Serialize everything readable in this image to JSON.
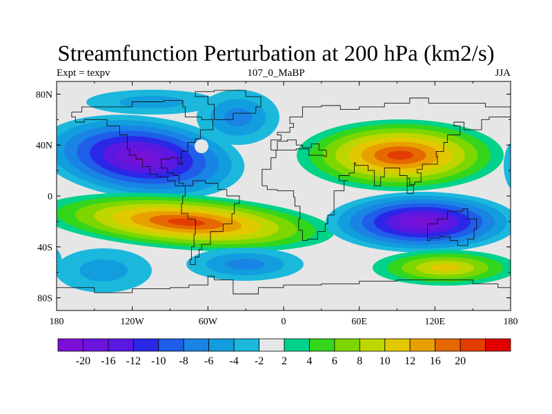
{
  "title": "Streamfunction Perturbation at 200 hPa (km2/s)",
  "left_string": "Expt = texpv",
  "center_string": "107_0_MaBP",
  "right_string": "JJA",
  "lat_ticks": [
    {
      "label": "80N",
      "lat": 80
    },
    {
      "label": "40N",
      "lat": 40
    },
    {
      "label": "0",
      "lat": 0
    },
    {
      "label": "40S",
      "lat": -40
    },
    {
      "label": "80S",
      "lat": -80
    }
  ],
  "lon_ticks": [
    {
      "label": "180",
      "lon": -180
    },
    {
      "label": "120W",
      "lon": -120
    },
    {
      "label": "60W",
      "lon": -60
    },
    {
      "label": "0",
      "lon": 0
    },
    {
      "label": "60E",
      "lon": 60
    },
    {
      "label": "120E",
      "lon": 120
    },
    {
      "label": "180",
      "lon": 180
    }
  ],
  "colorbar": {
    "colors": [
      "#7a0fd6",
      "#6a14dc",
      "#5a18e0",
      "#2a28e6",
      "#1e5ee8",
      "#1a84e4",
      "#129ede",
      "#1bb8dc",
      "#e6e6e6",
      "#00d28a",
      "#34d61c",
      "#7ed600",
      "#bed600",
      "#e2c800",
      "#e8a000",
      "#e66800",
      "#e23c00",
      "#e00000"
    ],
    "labels": [
      "-20",
      "-16",
      "-12",
      "-10",
      "-8",
      "-6",
      "-4",
      "-2",
      "2",
      "4",
      "6",
      "8",
      "10",
      "12",
      "16",
      "20"
    ]
  },
  "chart_data": {
    "type": "contour-map",
    "variable": "Streamfunction Perturbation at 200 hPa",
    "units": "km2/s",
    "experiment": "texpv",
    "case": "107_0_MaBP",
    "season": "JJA",
    "lon_range": [
      -180,
      180
    ],
    "lat_range": [
      -90,
      90
    ],
    "contour_levels": [
      -20,
      -16,
      -12,
      -10,
      -8,
      -6,
      -4,
      -2,
      2,
      4,
      6,
      8,
      10,
      12,
      16,
      20
    ],
    "features": [
      {
        "sign": "negative",
        "lon": -125,
        "lat": 28,
        "peak": -20
      },
      {
        "sign": "negative",
        "lon": 95,
        "lat": -18,
        "peak": -20
      },
      {
        "sign": "positive",
        "lon": 95,
        "lat": 30,
        "peak": 20
      },
      {
        "sign": "positive",
        "lon": -75,
        "lat": -22,
        "peak": 20
      },
      {
        "sign": "positive",
        "lon": 125,
        "lat": -50,
        "peak": 10
      },
      {
        "sign": "negative",
        "lon": -25,
        "lat": 65,
        "peak": -6
      },
      {
        "sign": "negative",
        "lon": -150,
        "lat": -50,
        "peak": -4
      },
      {
        "sign": "negative",
        "lon": -40,
        "lat": -52,
        "peak": -6
      }
    ]
  }
}
